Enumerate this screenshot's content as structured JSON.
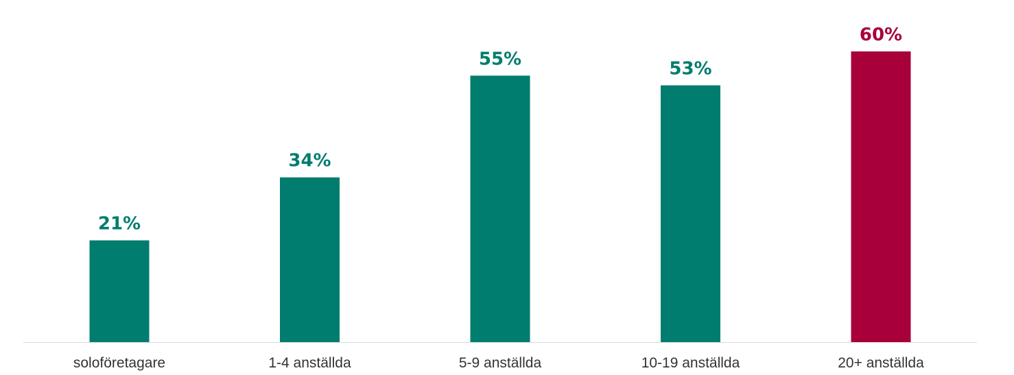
{
  "chart_data": {
    "type": "bar",
    "categories": [
      "soloföretagare",
      "1-4 anställda",
      "5-9 anställda",
      "10-19 anställda",
      "20+ anställda"
    ],
    "values": [
      21,
      34,
      55,
      53,
      60
    ],
    "value_labels": [
      "21%",
      "34%",
      "55%",
      "53%",
      "60%"
    ],
    "title": "",
    "xlabel": "",
    "ylabel": "",
    "ylim": [
      0,
      60
    ],
    "grid": false,
    "legend": "none",
    "colors": {
      "default": "#007d6e",
      "highlight": "#a8003a",
      "axis": "#d9d9d9"
    },
    "highlight_category": "20+ anställda"
  }
}
